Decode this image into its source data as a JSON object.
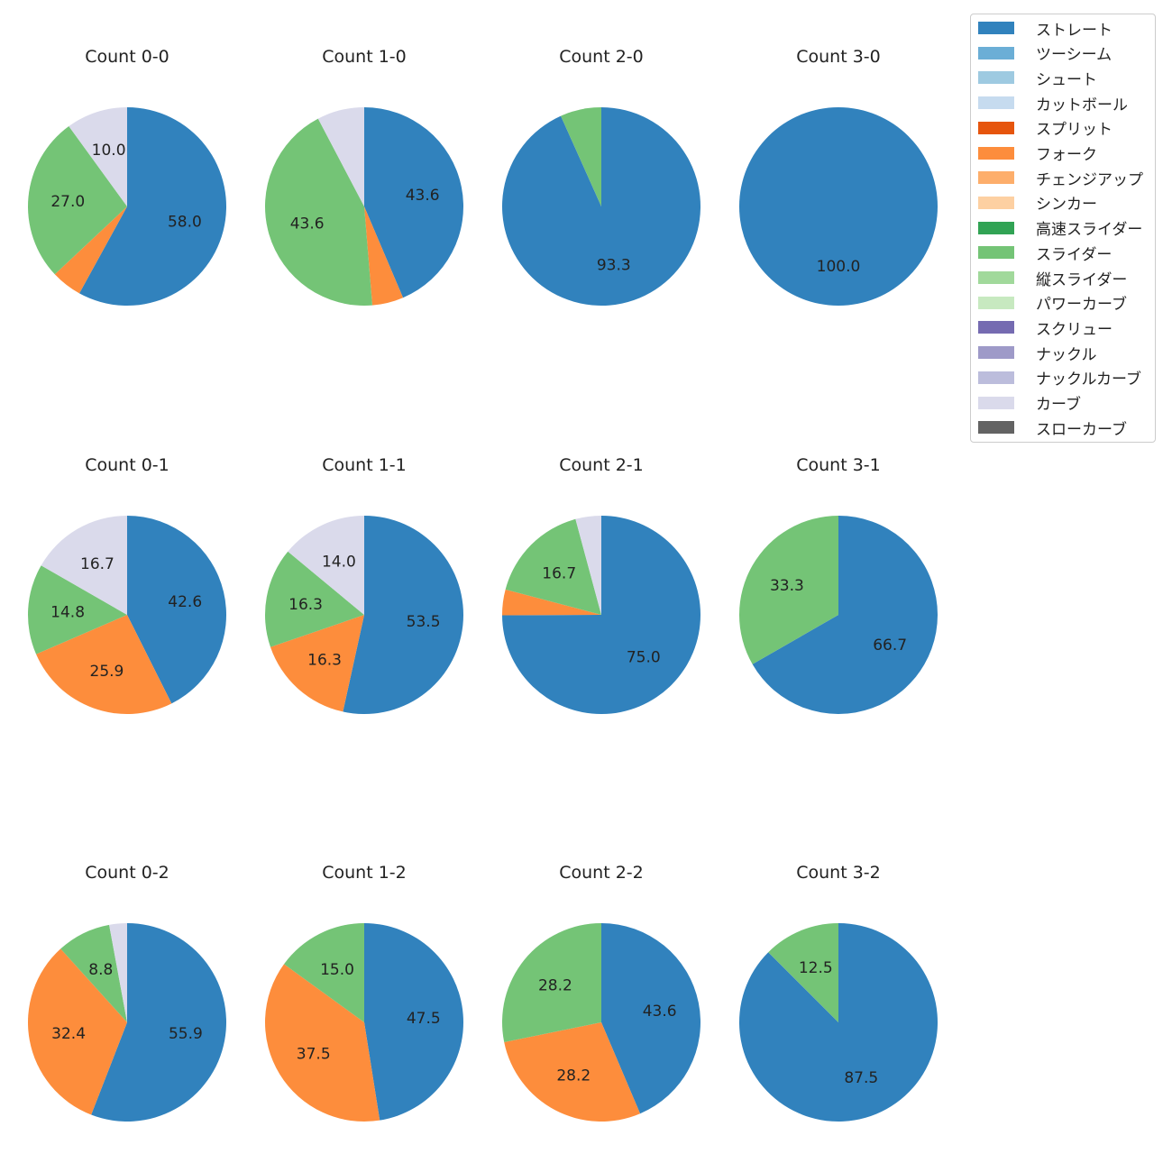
{
  "colors": {
    "ストレート": "#3182bd",
    "ツーシーム": "#6baed6",
    "シュート": "#9ecae1",
    "カットボール": "#c6dbef",
    "スプリット": "#e6550d",
    "フォーク": "#fd8d3c",
    "チェンジアップ": "#fdae6b",
    "シンカー": "#fdd0a2",
    "高速スライダー": "#31a354",
    "スライダー": "#74c476",
    "縦スライダー": "#a1d99b",
    "パワーカーブ": "#c7e9c0",
    "スクリュー": "#756bb1",
    "ナックル": "#9e9ac8",
    "ナックルカーブ": "#bcbddc",
    "カーブ": "#dadaeb",
    "スローカーブ": "#636363"
  },
  "legend": {
    "labels": [
      "ストレート",
      "ツーシーム",
      "シュート",
      "カットボール",
      "スプリット",
      "フォーク",
      "チェンジアップ",
      "シンカー",
      "高速スライダー",
      "スライダー",
      "縦スライダー",
      "パワーカーブ",
      "スクリュー",
      "ナックル",
      "ナックルカーブ",
      "カーブ",
      "スローカーブ"
    ]
  },
  "chart_data": [
    {
      "type": "pie",
      "title": "Count 0-0",
      "slices": [
        {
          "label": "ストレート",
          "value": 58.0
        },
        {
          "label": "フォーク",
          "value": 5.0
        },
        {
          "label": "スライダー",
          "value": 27.0
        },
        {
          "label": "カーブ",
          "value": 10.0
        }
      ]
    },
    {
      "type": "pie",
      "title": "Count 1-0",
      "slices": [
        {
          "label": "ストレート",
          "value": 43.6
        },
        {
          "label": "フォーク",
          "value": 5.1
        },
        {
          "label": "スライダー",
          "value": 43.6
        },
        {
          "label": "カーブ",
          "value": 7.7
        }
      ]
    },
    {
      "type": "pie",
      "title": "Count 2-0",
      "slices": [
        {
          "label": "ストレート",
          "value": 93.3
        },
        {
          "label": "スライダー",
          "value": 6.7
        }
      ]
    },
    {
      "type": "pie",
      "title": "Count 3-0",
      "slices": [
        {
          "label": "ストレート",
          "value": 100.0
        }
      ]
    },
    {
      "type": "pie",
      "title": "Count 0-1",
      "slices": [
        {
          "label": "ストレート",
          "value": 42.6
        },
        {
          "label": "フォーク",
          "value": 25.9
        },
        {
          "label": "スライダー",
          "value": 14.8
        },
        {
          "label": "カーブ",
          "value": 16.7
        }
      ]
    },
    {
      "type": "pie",
      "title": "Count 1-1",
      "slices": [
        {
          "label": "ストレート",
          "value": 53.5
        },
        {
          "label": "フォーク",
          "value": 16.3
        },
        {
          "label": "スライダー",
          "value": 16.3
        },
        {
          "label": "カーブ",
          "value": 14.0
        }
      ]
    },
    {
      "type": "pie",
      "title": "Count 2-1",
      "slices": [
        {
          "label": "ストレート",
          "value": 75.0
        },
        {
          "label": "フォーク",
          "value": 4.2
        },
        {
          "label": "スライダー",
          "value": 16.7
        },
        {
          "label": "カーブ",
          "value": 4.2
        }
      ]
    },
    {
      "type": "pie",
      "title": "Count 3-1",
      "slices": [
        {
          "label": "ストレート",
          "value": 66.7
        },
        {
          "label": "スライダー",
          "value": 33.3
        }
      ]
    },
    {
      "type": "pie",
      "title": "Count 0-2",
      "slices": [
        {
          "label": "ストレート",
          "value": 55.9
        },
        {
          "label": "フォーク",
          "value": 32.4
        },
        {
          "label": "スライダー",
          "value": 8.8
        },
        {
          "label": "カーブ",
          "value": 2.9
        }
      ]
    },
    {
      "type": "pie",
      "title": "Count 1-2",
      "slices": [
        {
          "label": "ストレート",
          "value": 47.5
        },
        {
          "label": "フォーク",
          "value": 37.5
        },
        {
          "label": "スライダー",
          "value": 15.0
        }
      ]
    },
    {
      "type": "pie",
      "title": "Count 2-2",
      "slices": [
        {
          "label": "ストレート",
          "value": 43.6
        },
        {
          "label": "フォーク",
          "value": 28.2
        },
        {
          "label": "スライダー",
          "value": 28.2
        }
      ]
    },
    {
      "type": "pie",
      "title": "Count 3-2",
      "slices": [
        {
          "label": "ストレート",
          "value": 87.5
        },
        {
          "label": "スライダー",
          "value": 12.5
        }
      ]
    }
  ]
}
